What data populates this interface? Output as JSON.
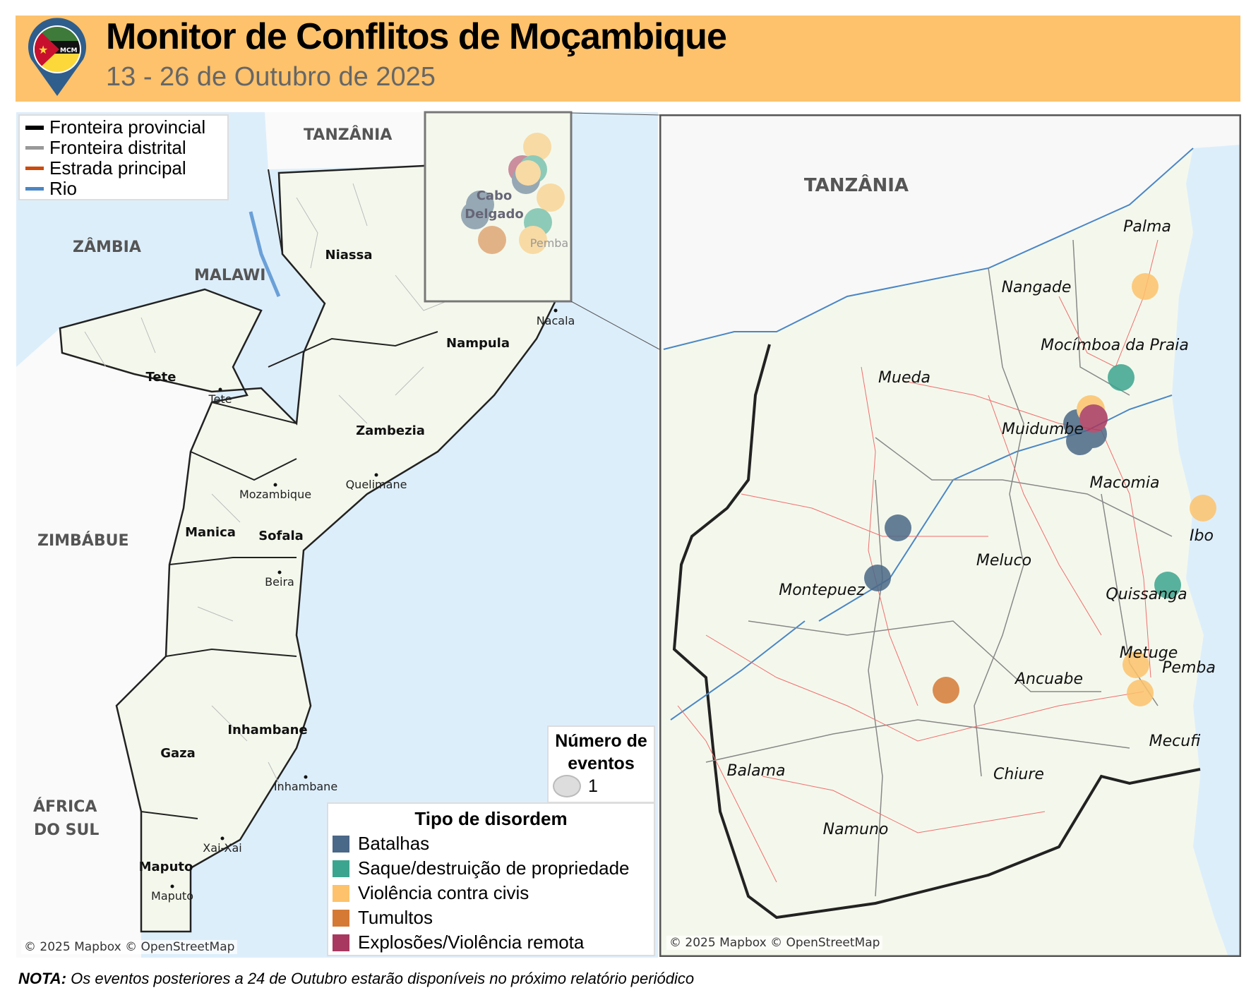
{
  "header": {
    "title": "Monitor de Conflitos de Moçambique",
    "subtitle": "13 - 26 de Outubro de 2025",
    "logo_text": "MCM"
  },
  "line_legend": [
    {
      "label": "Fronteira provincial",
      "color": "#000000"
    },
    {
      "label": "Fronteira distrital",
      "color": "#999999"
    },
    {
      "label": "Estrada principal",
      "color": "#cc4b0c"
    },
    {
      "label": "Rio",
      "color": "#4a86c5"
    }
  ],
  "size_legend": {
    "title": "Número de eventos",
    "value": "1"
  },
  "type_legend": {
    "title": "Tipo de disordem",
    "items": [
      {
        "label": "Batalhas",
        "color": "#4a6887"
      },
      {
        "label": "Saque/destruição de propriedade",
        "color": "#3ca58f"
      },
      {
        "label": "Violência contra civis",
        "color": "#fdc26b"
      },
      {
        "label": "Tumultos",
        "color": "#d57a35"
      },
      {
        "label": "Explosões/Violência remota",
        "color": "#a8385f"
      }
    ]
  },
  "overview_map": {
    "countries": [
      "TANZÂNIA",
      "ZÂMBIA",
      "MALAWI",
      "ZIMBÁBUE",
      "ÁFRICA",
      "DO SUL"
    ],
    "provinces": [
      "Niassa",
      "Nampula",
      "Tete",
      "Zambezia",
      "Manica",
      "Sofala",
      "Inhambane",
      "Gaza",
      "Maputo",
      "Cabo",
      "Delgado"
    ],
    "cities": [
      "Nacala",
      "Tete",
      "Quelimane",
      "Mozambique",
      "Beira",
      "Inhambane",
      "Xai-Xai",
      "Maputo",
      "Pemba"
    ],
    "attribution": "© 2025 Mapbox © OpenStreetMap"
  },
  "detail_map": {
    "country": "TANZÂNIA",
    "districts": [
      "Palma",
      "Nangade",
      "Mocímboa da Praia",
      "Mueda",
      "Muidumbe",
      "Macomia",
      "Ibo",
      "Meluco",
      "Montepuez",
      "Quissanga",
      "Metuge",
      "Pemba",
      "Ancuabe",
      "Mecufi",
      "Balama",
      "Chiure",
      "Namuno"
    ],
    "events": [
      {
        "type": "Violência contra civis",
        "near": "Palma"
      },
      {
        "type": "Saque/destruição de propriedade",
        "near": "Mocímboa da Praia"
      },
      {
        "type": "Batalhas",
        "near": "Muidumbe"
      },
      {
        "type": "Batalhas",
        "near": "Muidumbe"
      },
      {
        "type": "Batalhas",
        "near": "Muidumbe"
      },
      {
        "type": "Violência contra civis",
        "near": "Muidumbe"
      },
      {
        "type": "Explosões/Violência remota",
        "near": "Muidumbe"
      },
      {
        "type": "Violência contra civis",
        "near": "Ibo"
      },
      {
        "type": "Batalhas",
        "near": "Montepuez"
      },
      {
        "type": "Batalhas",
        "near": "Montepuez"
      },
      {
        "type": "Saque/destruição de propriedade",
        "near": "Quissanga"
      },
      {
        "type": "Violência contra civis",
        "near": "Metuge"
      },
      {
        "type": "Violência contra civis",
        "near": "Metuge"
      },
      {
        "type": "Tumultos",
        "near": "Ancuabe"
      }
    ],
    "attribution": "© 2025 Mapbox © OpenStreetMap"
  },
  "note": {
    "label": "NOTA:",
    "text": " Os eventos posteriores a 24 de Outubro estarão disponíveis no próximo relatório periódico"
  }
}
